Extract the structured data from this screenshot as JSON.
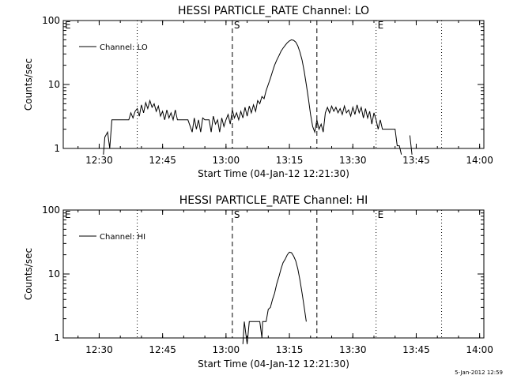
{
  "chart_data": [
    {
      "type": "line",
      "title": "HESSI PARTICLE_RATE Channel: LO",
      "xlabel": "Start Time (04-Jan-12 12:21:30)",
      "ylabel": "Counts/sec",
      "yscale": "log",
      "ylim": [
        1,
        100
      ],
      "xlim": [
        "12:21:30",
        "14:01:00"
      ],
      "x_ticks": [
        "12:30",
        "12:45",
        "13:00",
        "13:15",
        "13:30",
        "13:45",
        "14:00"
      ],
      "y_ticks": [
        "1",
        "10",
        "100"
      ],
      "legend": {
        "position": "top-left",
        "entries": [
          "Channel: LO"
        ]
      },
      "markers": [
        {
          "label": "E",
          "time": "12:21:30",
          "style": "dotted"
        },
        {
          "label": "",
          "time": "12:39:00",
          "style": "dotted"
        },
        {
          "label": "S",
          "time": "13:01:30",
          "style": "dashed"
        },
        {
          "label": "",
          "time": "13:21:30",
          "style": "dashed"
        },
        {
          "label": "E",
          "time": "13:35:30",
          "style": "dotted"
        },
        {
          "label": "",
          "time": "13:51:00",
          "style": "dotted"
        }
      ],
      "series": [
        {
          "name": "Channel: LO",
          "points": [
            [
              "12:31:00",
              0.8
            ],
            [
              "12:31:20",
              1.5
            ],
            [
              "12:32:00",
              1.8
            ],
            [
              "12:32:30",
              1.0
            ],
            [
              "12:33:00",
              2.8
            ],
            [
              "12:35:00",
              2.8
            ],
            [
              "12:37:00",
              2.8
            ],
            [
              "12:37:30",
              3.6
            ],
            [
              "12:38:00",
              3.0
            ],
            [
              "12:38:30",
              3.8
            ],
            [
              "12:39:00",
              4.2
            ],
            [
              "12:39:30",
              3.2
            ],
            [
              "12:40:00",
              4.8
            ],
            [
              "12:40:30",
              3.6
            ],
            [
              "12:41:00",
              5.2
            ],
            [
              "12:41:30",
              4.2
            ],
            [
              "12:42:00",
              5.6
            ],
            [
              "12:42:30",
              4.4
            ],
            [
              "12:43:00",
              5.0
            ],
            [
              "12:43:30",
              3.8
            ],
            [
              "12:44:00",
              4.6
            ],
            [
              "12:44:30",
              3.2
            ],
            [
              "12:45:00",
              3.8
            ],
            [
              "12:45:30",
              2.8
            ],
            [
              "12:46:00",
              4.0
            ],
            [
              "12:46:30",
              3.0
            ],
            [
              "12:47:00",
              3.6
            ],
            [
              "12:47:30",
              2.8
            ],
            [
              "12:48:00",
              4.0
            ],
            [
              "12:48:30",
              2.8
            ],
            [
              "12:49:00",
              2.8
            ],
            [
              "12:50:00",
              2.8
            ],
            [
              "12:51:00",
              2.8
            ],
            [
              "12:52:00",
              1.8
            ],
            [
              "12:52:30",
              3.0
            ],
            [
              "12:53:00",
              2.0
            ],
            [
              "12:53:30",
              2.8
            ],
            [
              "12:54:00",
              1.8
            ],
            [
              "12:54:30",
              3.0
            ],
            [
              "12:55:00",
              2.8
            ],
            [
              "12:56:00",
              2.8
            ],
            [
              "12:56:30",
              1.8
            ],
            [
              "12:57:00",
              3.2
            ],
            [
              "12:57:30",
              2.4
            ],
            [
              "12:58:00",
              2.8
            ],
            [
              "12:58:30",
              1.8
            ],
            [
              "12:59:00",
              3.0
            ],
            [
              "12:59:30",
              2.2
            ],
            [
              "13:00:00",
              2.8
            ],
            [
              "13:00:30",
              3.4
            ],
            [
              "13:01:00",
              2.4
            ],
            [
              "13:01:30",
              4.0
            ],
            [
              "13:02:00",
              3.0
            ],
            [
              "13:02:30",
              3.6
            ],
            [
              "13:03:00",
              2.8
            ],
            [
              "13:03:30",
              3.8
            ],
            [
              "13:04:00",
              3.0
            ],
            [
              "13:04:30",
              4.4
            ],
            [
              "13:05:00",
              3.2
            ],
            [
              "13:05:30",
              4.6
            ],
            [
              "13:06:00",
              3.6
            ],
            [
              "13:06:30",
              4.8
            ],
            [
              "13:07:00",
              3.8
            ],
            [
              "13:07:30",
              5.6
            ],
            [
              "13:08:00",
              5.0
            ],
            [
              "13:08:30",
              6.5
            ],
            [
              "13:09:00",
              6.0
            ],
            [
              "13:09:30",
              8.0
            ],
            [
              "13:10:00",
              10.0
            ],
            [
              "13:10:30",
              12.5
            ],
            [
              "13:11:00",
              16.0
            ],
            [
              "13:11:30",
              20.0
            ],
            [
              "13:12:00",
              24.0
            ],
            [
              "13:12:30",
              28.0
            ],
            [
              "13:13:00",
              33.0
            ],
            [
              "13:13:30",
              37.0
            ],
            [
              "13:14:00",
              41.0
            ],
            [
              "13:14:30",
              45.0
            ],
            [
              "13:15:00",
              48.0
            ],
            [
              "13:15:30",
              50.0
            ],
            [
              "13:16:00",
              49.0
            ],
            [
              "13:16:30",
              46.0
            ],
            [
              "13:17:00",
              40.0
            ],
            [
              "13:17:30",
              32.0
            ],
            [
              "13:18:00",
              24.0
            ],
            [
              "13:18:30",
              16.0
            ],
            [
              "13:19:00",
              10.0
            ],
            [
              "13:19:30",
              6.0
            ],
            [
              "13:20:00",
              3.4
            ],
            [
              "13:20:30",
              2.2
            ],
            [
              "13:21:00",
              1.8
            ],
            [
              "13:21:30",
              2.8
            ],
            [
              "13:22:00",
              2.0
            ],
            [
              "13:22:30",
              2.4
            ],
            [
              "13:23:00",
              1.8
            ],
            [
              "13:23:30",
              3.6
            ],
            [
              "13:24:00",
              4.4
            ],
            [
              "13:24:30",
              3.6
            ],
            [
              "13:25:00",
              4.6
            ],
            [
              "13:25:30",
              3.8
            ],
            [
              "13:26:00",
              4.4
            ],
            [
              "13:26:30",
              3.6
            ],
            [
              "13:27:00",
              4.2
            ],
            [
              "13:27:30",
              3.4
            ],
            [
              "13:28:00",
              4.6
            ],
            [
              "13:28:30",
              3.6
            ],
            [
              "13:29:00",
              4.0
            ],
            [
              "13:29:30",
              3.2
            ],
            [
              "13:30:00",
              4.4
            ],
            [
              "13:30:30",
              3.4
            ],
            [
              "13:31:00",
              4.8
            ],
            [
              "13:31:30",
              3.6
            ],
            [
              "13:32:00",
              4.4
            ],
            [
              "13:32:30",
              3.0
            ],
            [
              "13:33:00",
              4.2
            ],
            [
              "13:33:30",
              3.0
            ],
            [
              "13:34:00",
              3.8
            ],
            [
              "13:34:30",
              2.4
            ],
            [
              "13:35:00",
              3.6
            ],
            [
              "13:35:30",
              2.8
            ],
            [
              "13:36:00",
              2.0
            ],
            [
              "13:36:30",
              2.8
            ],
            [
              "13:37:00",
              2.0
            ],
            [
              "13:38:00",
              2.0
            ],
            [
              "13:39:00",
              2.0
            ],
            [
              "13:40:00",
              2.0
            ],
            [
              "13:40:30",
              1.1
            ],
            [
              "13:41:00",
              1.1
            ],
            [
              "13:41:30",
              0.8
            ]
          ]
        },
        {
          "name": "",
          "points": [
            [
              "13:43:30",
              1.6
            ],
            [
              "13:44:00",
              0.8
            ]
          ]
        }
      ]
    },
    {
      "type": "line",
      "title": "HESSI PARTICLE_RATE Channel: HI",
      "xlabel": "Start Time (04-Jan-12 12:21:30)",
      "ylabel": "Counts/sec",
      "yscale": "log",
      "ylim": [
        1,
        100
      ],
      "xlim": [
        "12:21:30",
        "14:01:00"
      ],
      "x_ticks": [
        "12:30",
        "12:45",
        "13:00",
        "13:15",
        "13:30",
        "13:45",
        "14:00"
      ],
      "y_ticks": [
        "1",
        "10",
        "100"
      ],
      "legend": {
        "position": "top-left",
        "entries": [
          "Channel: HI"
        ]
      },
      "markers": [
        {
          "label": "E",
          "time": "12:21:30",
          "style": "dotted"
        },
        {
          "label": "",
          "time": "12:39:00",
          "style": "dotted"
        },
        {
          "label": "S",
          "time": "13:01:30",
          "style": "dashed"
        },
        {
          "label": "",
          "time": "13:21:30",
          "style": "dashed"
        },
        {
          "label": "E",
          "time": "13:35:30",
          "style": "dotted"
        },
        {
          "label": "",
          "time": "13:51:00",
          "style": "dotted"
        }
      ],
      "series": [
        {
          "name": "Channel: HI",
          "points": [
            [
              "13:04:00",
              0.8
            ],
            [
              "13:04:20",
              1.8
            ],
            [
              "13:05:00",
              0.8
            ],
            [
              "13:05:30",
              1.8
            ],
            [
              "13:06:00",
              1.8
            ],
            [
              "13:07:00",
              1.8
            ],
            [
              "13:08:00",
              1.8
            ],
            [
              "13:08:30",
              1.0
            ],
            [
              "13:08:40",
              1.8
            ],
            [
              "13:09:30",
              1.8
            ],
            [
              "13:10:00",
              2.8
            ],
            [
              "13:10:30",
              3.0
            ],
            [
              "13:11:00",
              4.0
            ],
            [
              "13:11:30",
              5.0
            ],
            [
              "13:12:00",
              7.0
            ],
            [
              "13:12:30",
              9.0
            ],
            [
              "13:13:00",
              12.0
            ],
            [
              "13:13:30",
              15.0
            ],
            [
              "13:14:00",
              17.0
            ],
            [
              "13:14:30",
              20.0
            ],
            [
              "13:15:00",
              22.0
            ],
            [
              "13:15:30",
              21.5
            ],
            [
              "13:16:00",
              19.0
            ],
            [
              "13:16:30",
              16.0
            ],
            [
              "13:17:00",
              12.0
            ],
            [
              "13:17:30",
              8.0
            ],
            [
              "13:18:00",
              5.0
            ],
            [
              "13:18:30",
              3.0
            ],
            [
              "13:19:00",
              1.8
            ]
          ]
        }
      ]
    }
  ],
  "footer": {
    "timestamp": "5-Jan-2012 12:59"
  }
}
